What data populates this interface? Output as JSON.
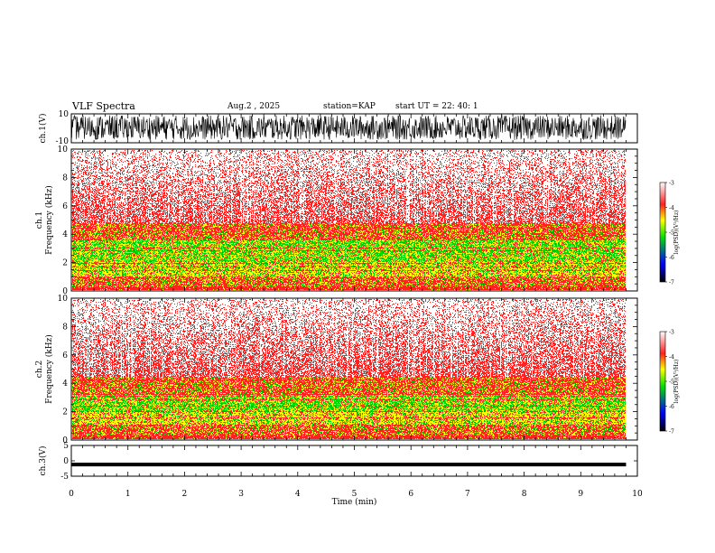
{
  "header": {
    "title": "VLF Spectra",
    "date": "Aug.2 , 2025",
    "station": "station=KAP",
    "start_ut": "start UT = 22: 40: 1"
  },
  "colors": {
    "high": "#ffffff",
    "c1": "#ff2020",
    "c2": "#ffff00",
    "c3": "#00e000",
    "c4": "#0000ff",
    "low": "#000000"
  },
  "chart_data": [
    {
      "type": "line",
      "name": "ch1-waveform",
      "ylabel": "ch.1(V)",
      "ylim": [
        -10,
        10
      ],
      "y_ticklabels": [
        "10",
        "-10"
      ],
      "xlim": [
        0,
        10
      ],
      "envelope": [
        -8,
        9
      ]
    },
    {
      "type": "heatmap",
      "name": "ch1-spectrogram",
      "ylabel": "ch.1 Frequency (kHz)",
      "ylim": [
        0,
        10
      ],
      "y_ticks": [
        0,
        2,
        4,
        6,
        8,
        10
      ],
      "xlim": [
        0,
        10
      ],
      "data_end_min": 9.8,
      "bands": [
        {
          "from": 0.0,
          "to": 0.3,
          "level": "red"
        },
        {
          "from": 0.3,
          "to": 1.0,
          "level": "red-yellow"
        },
        {
          "from": 1.0,
          "to": 2.0,
          "level": "yellow"
        },
        {
          "from": 2.0,
          "to": 3.6,
          "level": "yellow-green"
        },
        {
          "from": 3.6,
          "to": 4.8,
          "level": "red-yellow"
        },
        {
          "from": 4.8,
          "to": 10.0,
          "level": "red-white"
        }
      ],
      "colorbar": {
        "label": "log(PSD)(V²/Hz)",
        "ticks": [
          -3,
          -4,
          -5,
          -6,
          -7
        ],
        "range": [
          -7,
          -3
        ]
      }
    },
    {
      "type": "heatmap",
      "name": "ch2-spectrogram",
      "ylabel": "ch.2 Frequency (kHz)",
      "ylim": [
        0,
        10
      ],
      "y_ticks": [
        0,
        2,
        4,
        6,
        8,
        10
      ],
      "xlim": [
        0,
        10
      ],
      "data_end_min": 9.8,
      "bands": [
        {
          "from": 0.0,
          "to": 0.3,
          "level": "red"
        },
        {
          "from": 0.3,
          "to": 1.0,
          "level": "red-yellow"
        },
        {
          "from": 1.0,
          "to": 2.0,
          "level": "yellow"
        },
        {
          "from": 2.0,
          "to": 3.2,
          "level": "yellow-green"
        },
        {
          "from": 3.2,
          "to": 4.4,
          "level": "red-yellow"
        },
        {
          "from": 4.4,
          "to": 10.0,
          "level": "red-white"
        }
      ],
      "colorbar": {
        "label": "log(PSD)(V²/Hz)",
        "ticks": [
          -3,
          -4,
          -5,
          -6,
          -7
        ],
        "range": [
          -7,
          -3
        ]
      }
    },
    {
      "type": "line",
      "name": "ch3-waveform",
      "ylabel": "ch.3(V)",
      "ylim": [
        -5,
        5
      ],
      "y_ticks": [
        5,
        0,
        -5
      ],
      "xlim": [
        0,
        10
      ],
      "envelope": [
        -1.8,
        -0.6
      ]
    }
  ],
  "x_axis": {
    "label": "Time (min)",
    "ticks": [
      0,
      1,
      2,
      3,
      4,
      5,
      6,
      7,
      8,
      9,
      10
    ]
  }
}
